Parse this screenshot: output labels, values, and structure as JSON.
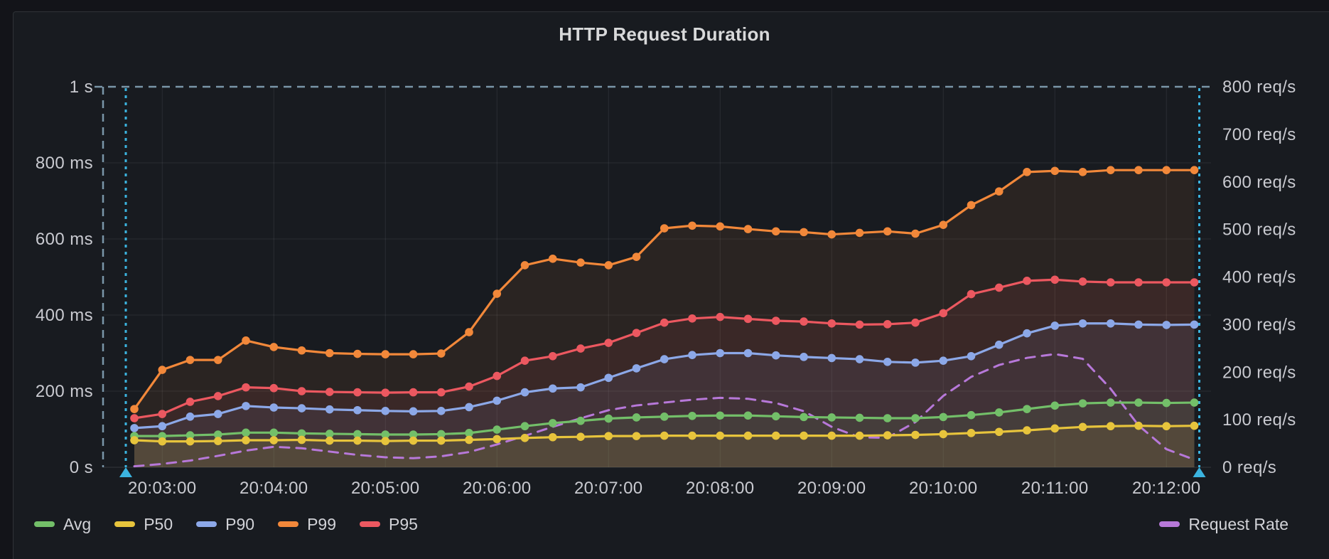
{
  "panel": {
    "title": "HTTP Request Duration"
  },
  "colors": {
    "page_background": "#131419",
    "panel_background": "#181B20",
    "panel_border": "#2F3237",
    "grid": "rgba(204,204,220,0.10)",
    "axis_line": "rgba(204,204,220,0.16)",
    "tick_text": "#C9CAD0",
    "title_text": "#D8D9DA",
    "annotation_cyan": "#3BB4E0",
    "threshold_dash": "#7A96A8"
  },
  "axes": {
    "left": {
      "unit": "time",
      "ticks": [
        {
          "label": "1 s",
          "ms": 1000
        },
        {
          "label": "800 ms",
          "ms": 800
        },
        {
          "label": "600 ms",
          "ms": 600
        },
        {
          "label": "400 ms",
          "ms": 400
        },
        {
          "label": "200 ms",
          "ms": 200
        },
        {
          "label": "0 s",
          "ms": 0
        }
      ]
    },
    "right": {
      "unit": "req/s",
      "ticks": [
        {
          "label": "800 req/s",
          "value": 800
        },
        {
          "label": "700 req/s",
          "value": 700
        },
        {
          "label": "600 req/s",
          "value": 600
        },
        {
          "label": "500 req/s",
          "value": 500
        },
        {
          "label": "400 req/s",
          "value": 400
        },
        {
          "label": "300 req/s",
          "value": 300
        },
        {
          "label": "200 req/s",
          "value": 200
        },
        {
          "label": "100 req/s",
          "value": 100
        },
        {
          "label": "0 req/s",
          "value": 0
        }
      ]
    },
    "x": {
      "tick_labels": [
        "20:03:00",
        "20:04:00",
        "20:05:00",
        "20:06:00",
        "20:07:00",
        "20:08:00",
        "20:09:00",
        "20:10:00",
        "20:11:00",
        "20:12:00"
      ]
    }
  },
  "legend": {
    "left": [
      {
        "label": "Avg",
        "color": "#73BF69"
      },
      {
        "label": "P50",
        "color": "#E7C43C"
      },
      {
        "label": "P90",
        "color": "#8CA8E8"
      },
      {
        "label": "P99",
        "color": "#F2883A"
      },
      {
        "label": "P95",
        "color": "#EC5860"
      }
    ],
    "right": [
      {
        "label": "Request Rate",
        "color": "#B778D9"
      }
    ]
  },
  "chart_data": {
    "type": "line",
    "title": "HTTP Request Duration",
    "ylabel_left": "duration",
    "ylabel_right": "req/s",
    "ylim_left_ms": [
      0,
      1000
    ],
    "ylim_right_reqs": [
      0,
      800
    ],
    "grid": true,
    "x_times": [
      "20:02:45",
      "20:03:00",
      "20:03:15",
      "20:03:30",
      "20:03:45",
      "20:04:00",
      "20:04:15",
      "20:04:30",
      "20:04:45",
      "20:05:00",
      "20:05:15",
      "20:05:30",
      "20:05:45",
      "20:06:00",
      "20:06:15",
      "20:06:30",
      "20:06:45",
      "20:07:00",
      "20:07:15",
      "20:07:30",
      "20:07:45",
      "20:08:00",
      "20:08:15",
      "20:08:30",
      "20:08:45",
      "20:09:00",
      "20:09:15",
      "20:09:30",
      "20:09:45",
      "20:10:00",
      "20:10:15",
      "20:10:30",
      "20:10:45",
      "20:11:00",
      "20:11:15",
      "20:11:30",
      "20:11:45",
      "20:12:00",
      "20:12:15"
    ],
    "series": [
      {
        "name": "P99",
        "axis": "left",
        "unit": "ms",
        "color": "#F2883A",
        "style": "solid-points",
        "fill_opacity": 0.085,
        "values": [
          153,
          256,
          282,
          282,
          333,
          316,
          307,
          300,
          298,
          297,
          297,
          299,
          355,
          456,
          531,
          548,
          538,
          531,
          553,
          628,
          635,
          633,
          626,
          620,
          618,
          612,
          616,
          620,
          614,
          637,
          689,
          725,
          776,
          779,
          776,
          781,
          781,
          781,
          781
        ]
      },
      {
        "name": "P95",
        "axis": "left",
        "unit": "ms",
        "color": "#EC5860",
        "style": "solid-points",
        "fill_opacity": 0.085,
        "values": [
          129,
          140,
          172,
          187,
          210,
          208,
          200,
          198,
          197,
          196,
          197,
          197,
          212,
          240,
          280,
          292,
          312,
          327,
          353,
          380,
          391,
          395,
          390,
          385,
          383,
          378,
          375,
          376,
          380,
          405,
          455,
          472,
          490,
          493,
          488,
          486,
          486,
          486,
          486
        ]
      },
      {
        "name": "P90",
        "axis": "left",
        "unit": "ms",
        "color": "#8CA8E8",
        "style": "solid-points",
        "fill_opacity": 0.085,
        "values": [
          103,
          108,
          133,
          140,
          161,
          157,
          155,
          152,
          150,
          148,
          147,
          148,
          158,
          175,
          197,
          207,
          210,
          235,
          260,
          284,
          295,
          300,
          300,
          294,
          290,
          287,
          284,
          277,
          275,
          280,
          292,
          322,
          352,
          372,
          378,
          378,
          375,
          374,
          375
        ]
      },
      {
        "name": "Avg",
        "axis": "left",
        "unit": "ms",
        "color": "#73BF69",
        "style": "solid-points",
        "fill_opacity": 0.085,
        "values": [
          82,
          82,
          84,
          86,
          91,
          91,
          89,
          88,
          87,
          86,
          86,
          87,
          90,
          99,
          108,
          116,
          122,
          128,
          131,
          133,
          135,
          136,
          136,
          134,
          132,
          131,
          130,
          129,
          129,
          132,
          137,
          144,
          153,
          162,
          168,
          170,
          170,
          169,
          170
        ]
      },
      {
        "name": "P50",
        "axis": "left",
        "unit": "ms",
        "color": "#E7C43C",
        "style": "solid-points",
        "fill_opacity": 0.085,
        "values": [
          71,
          68,
          68,
          69,
          71,
          71,
          72,
          70,
          70,
          69,
          70,
          70,
          72,
          74,
          77,
          79,
          80,
          82,
          82,
          83,
          83,
          83,
          83,
          83,
          83,
          83,
          83,
          84,
          85,
          87,
          90,
          93,
          97,
          102,
          106,
          108,
          109,
          108,
          109
        ]
      },
      {
        "name": "Request Rate",
        "axis": "right",
        "unit": "req/s",
        "color": "#B778D9",
        "style": "dashed",
        "fill_opacity": 0,
        "values": [
          2,
          7,
          14,
          24,
          35,
          43,
          40,
          33,
          26,
          21,
          19,
          23,
          32,
          48,
          66,
          85,
          103,
          120,
          130,
          136,
          142,
          146,
          144,
          135,
          118,
          85,
          63,
          62,
          95,
          150,
          190,
          215,
          230,
          238,
          228,
          165,
          88,
          38,
          16
        ]
      }
    ],
    "threshold_line": {
      "at_ms": 1000,
      "style": "dashed",
      "color": "#7A96A8"
    },
    "annotations": {
      "style": "cyan-dotted-vertical-with-triangle",
      "color": "#3BB4E0",
      "positions": [
        "range-start",
        "range-end"
      ]
    }
  }
}
